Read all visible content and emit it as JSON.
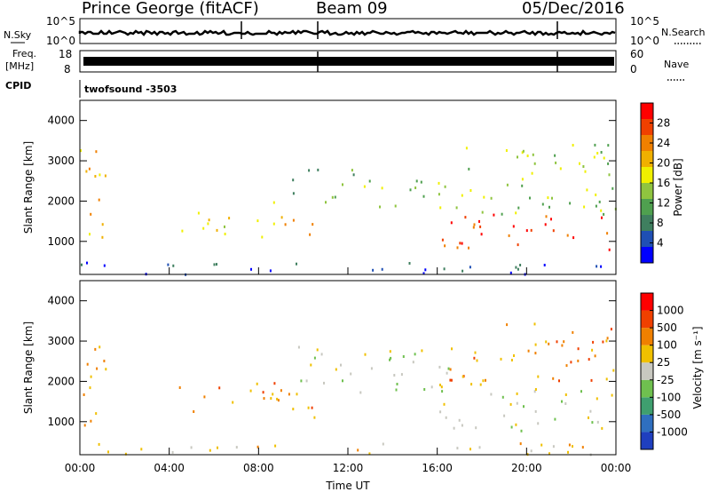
{
  "header": {
    "station": "Prince George (fitACF)",
    "beam": "Beam 09",
    "date": "05/Dec/2016"
  },
  "side_labels": {
    "nsky": "N.Sky",
    "freq": "Freq.",
    "freq_unit": "[MHz]",
    "cpid": "CPID",
    "nsearch": "N.Search",
    "nave": "Nave"
  },
  "noise_panel": {
    "left_ticks": [
      "10^5",
      "10^0"
    ],
    "right_ticks": [
      "10^5",
      "10^0"
    ]
  },
  "freq_panel": {
    "left_ticks": [
      "18",
      "8"
    ],
    "right_ticks": [
      "60",
      "0"
    ]
  },
  "cpid_panel": {
    "label": "twofsound -3503"
  },
  "x_axis": {
    "ticks": [
      "00:00",
      "04:00",
      "08:00",
      "12:00",
      "16:00",
      "20:00",
      "00:00"
    ],
    "label": "Time UT"
  },
  "power_panel": {
    "ylabel": "Slant Range [km]",
    "yticks": [
      "4000",
      "3000",
      "2000",
      "1000"
    ],
    "colorbar_label": "Power [dB]",
    "colorbar_ticks": [
      "28",
      "24",
      "20",
      "16",
      "12",
      "8",
      "4"
    ],
    "colors": [
      "#0000ff",
      "#1f4fb4",
      "#3f7f5f",
      "#4fa04f",
      "#8fc43f",
      "#f0f000",
      "#f0b000",
      "#f08000",
      "#f04000",
      "#ff0000"
    ]
  },
  "velocity_panel": {
    "ylabel": "Slant Range [km]",
    "yticks": [
      "4000",
      "3000",
      "2000",
      "1000"
    ],
    "colorbar_label": "Velocity [m s⁻¹]",
    "colorbar_ticks": [
      "1000",
      "500",
      "100",
      "25",
      "-25",
      "-100",
      "-500",
      "-1000"
    ],
    "colors": [
      "#1f3fbf",
      "#2f6fbf",
      "#3f9f6f",
      "#6fc04f",
      "#c8c8c0",
      "#f0c000",
      "#f08000",
      "#f04000",
      "#ff0000"
    ]
  },
  "chart_data": {
    "type": "heatmap",
    "title": "Prince George (fitACF)",
    "subtitle": "Beam 09 05/Dec/2016",
    "xlabel": "Time UT",
    "ylabel": "Slant Range [km]",
    "xlim": [
      0,
      24
    ],
    "ylim": [
      180,
      4500
    ],
    "x_tick_labels": [
      "00:00",
      "04:00",
      "08:00",
      "12:00",
      "16:00",
      "20:00",
      "00:00"
    ],
    "y_tick_labels": [
      "4000",
      "3000",
      "2000",
      "1000"
    ],
    "colorbars": [
      {
        "label": "Power [dB]",
        "ticks": [
          28,
          24,
          20,
          16,
          12,
          8,
          4
        ]
      },
      {
        "label": "Velocity [m s⁻¹]",
        "ticks": [
          1000,
          500,
          100,
          25,
          -25,
          -100,
          -500,
          -1000
        ]
      }
    ],
    "cpid": "twofsound -3503",
    "echo_regions_power": [
      {
        "t0": 0.0,
        "t1": 1.2,
        "r0": 800,
        "r1": 3500,
        "level": 6
      },
      {
        "t0": 4.3,
        "t1": 8.5,
        "r0": 1100,
        "r1": 1800,
        "level": 5
      },
      {
        "t0": 8.5,
        "t1": 10.5,
        "r0": 1100,
        "r1": 2000,
        "level": 6
      },
      {
        "t0": 9.5,
        "t1": 12.5,
        "r0": 2000,
        "r1": 2900,
        "level": 3
      },
      {
        "t0": 12.5,
        "t1": 16.5,
        "r0": 1700,
        "r1": 2600,
        "level": 4
      },
      {
        "t0": 16.0,
        "t1": 24.0,
        "r0": 800,
        "r1": 1700,
        "level": 8
      },
      {
        "t0": 16.5,
        "t1": 24.0,
        "r0": 1700,
        "r1": 3500,
        "level": 4
      },
      {
        "t0": 0.0,
        "t1": 24.0,
        "r0": 200,
        "r1": 500,
        "level": 1
      }
    ],
    "echo_regions_velocity": [
      {
        "t0": 0.0,
        "t1": 1.2,
        "r0": 800,
        "r1": 3500,
        "level": 6
      },
      {
        "t0": 4.3,
        "t1": 10.5,
        "r0": 1100,
        "r1": 2000,
        "level": 6
      },
      {
        "t0": 9.5,
        "t1": 16.5,
        "r0": 1700,
        "r1": 2900,
        "level": 4
      },
      {
        "t0": 16.0,
        "t1": 24.0,
        "r0": 800,
        "r1": 2000,
        "level": 4
      },
      {
        "t0": 16.5,
        "t1": 24.0,
        "r0": 2000,
        "r1": 3500,
        "level": 6
      },
      {
        "t0": 0.0,
        "t1": 24.0,
        "r0": 200,
        "r1": 500,
        "level": 5
      }
    ]
  }
}
